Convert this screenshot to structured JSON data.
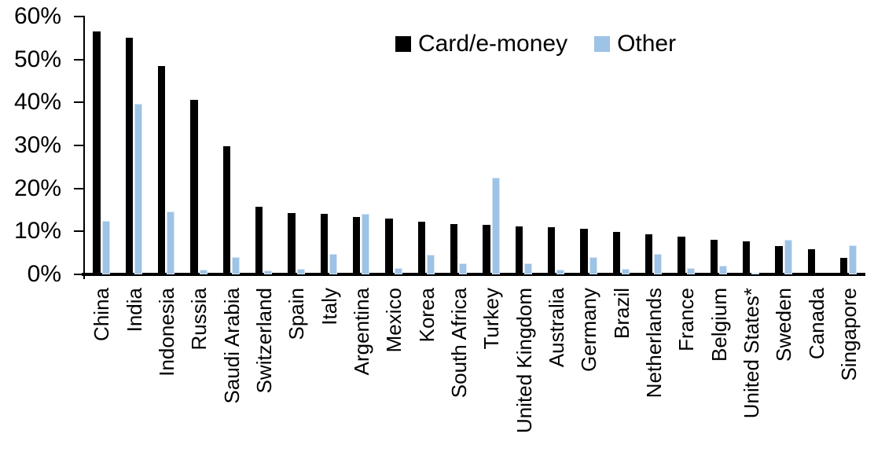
{
  "chart_data": {
    "type": "bar",
    "title": "",
    "xlabel": "",
    "ylabel": "",
    "ylim": [
      0,
      60
    ],
    "grid": false,
    "legend_position": "top-center",
    "yticks": [
      {
        "value": 0,
        "label": "0%"
      },
      {
        "value": 10,
        "label": "10%"
      },
      {
        "value": 20,
        "label": "20%"
      },
      {
        "value": 30,
        "label": "30%"
      },
      {
        "value": 40,
        "label": "40%"
      },
      {
        "value": 50,
        "label": "50%"
      },
      {
        "value": 60,
        "label": "60%"
      }
    ],
    "categories": [
      "China",
      "India",
      "Indonesia",
      "Russia",
      "Saudi Arabia",
      "Switzerland",
      "Spain",
      "Italy",
      "Argentina",
      "Mexico",
      "Korea",
      "South Africa",
      "Turkey",
      "United Kingdom",
      "Australia",
      "Germany",
      "Brazil",
      "Netherlands",
      "France",
      "Belgium",
      "United States*",
      "Sweden",
      "Canada",
      "Singapore"
    ],
    "series": [
      {
        "name": "Card/e-money",
        "color": "#000000",
        "values": [
          56.4,
          55.1,
          48.4,
          40.6,
          29.8,
          15.7,
          14.3,
          14.0,
          13.4,
          12.9,
          12.2,
          11.7,
          11.6,
          11.1,
          10.9,
          10.6,
          9.9,
          9.3,
          8.7,
          8.0,
          7.7,
          6.5,
          5.9,
          3.8
        ]
      },
      {
        "name": "Other",
        "color": "#9DC3E6",
        "values": [
          12.4,
          39.7,
          14.6,
          1.1,
          4.0,
          0.9,
          1.2,
          4.7,
          14.0,
          1.4,
          4.6,
          2.6,
          22.5,
          2.6,
          1.1,
          4.1,
          1.2,
          4.7,
          1.5,
          2.1,
          0.3,
          8.0,
          0.0,
          6.7
        ]
      }
    ]
  },
  "colors": {
    "background": "#ffffff",
    "axis": "#000000",
    "card_fill": "#000000",
    "other_fill": "#9DC3E6",
    "other_border": "#D9E5F2",
    "text": "#000000"
  }
}
